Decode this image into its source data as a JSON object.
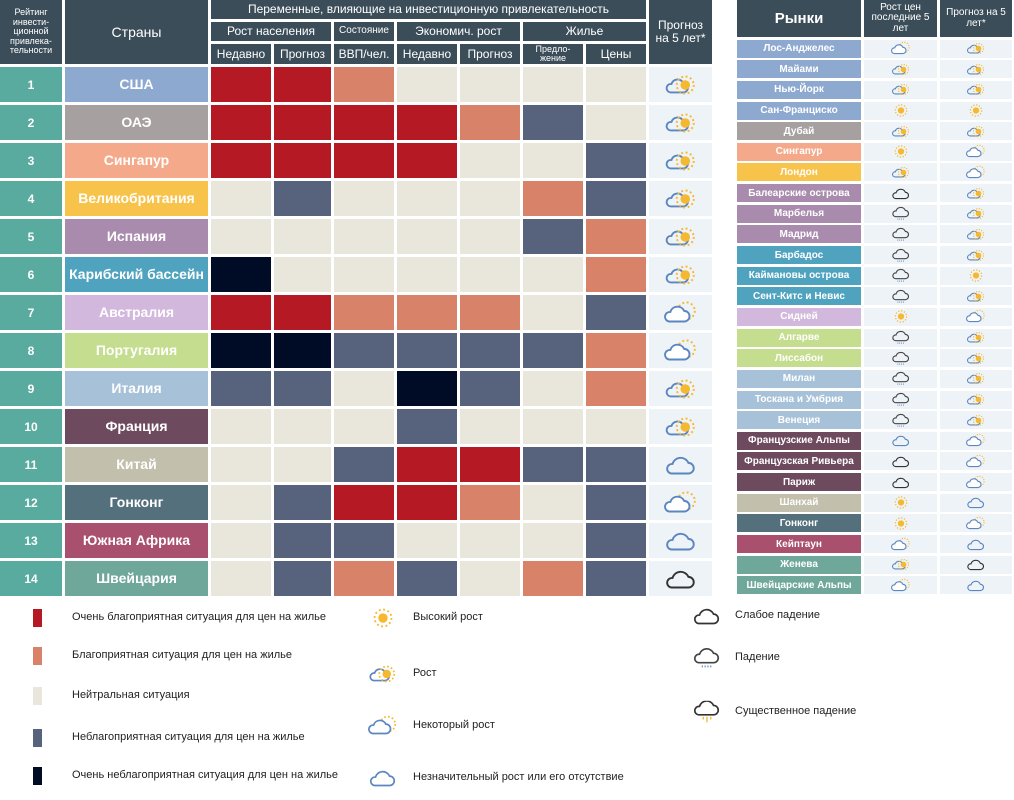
{
  "chart_data": {
    "type": "table",
    "title": "Переменные, влияющие на инвестиционную привлекательность",
    "headers": {
      "rank": "Рейтинг инвести-ционной привлека-тельности",
      "country": "Страны",
      "variables": "Переменные, влияющие на инвестиционную привлекательность",
      "groups": [
        "Рост населения",
        "Состояние",
        "Экономич. рост",
        "Жилье"
      ],
      "columns": [
        "Недавно",
        "Прогноз",
        "ВВП/чел.",
        "Недавно",
        "Прогноз",
        "Предло-жение",
        "Цены"
      ],
      "forecast": "Прогноз на 5 лет*"
    },
    "scale": {
      "2": "#b51a24",
      "1": "#d9826a",
      "0": "#e9e6dc",
      "-1": "#57627d",
      "-2": "#000c25"
    },
    "rows": [
      {
        "rank": "1",
        "country": "США",
        "color": "#8ea9d0",
        "values": [
          2,
          2,
          1,
          0,
          0,
          0,
          0
        ],
        "forecast": "growth"
      },
      {
        "rank": "2",
        "country": "ОАЭ",
        "color": "#a6a0a0",
        "values": [
          2,
          2,
          2,
          2,
          1,
          -1,
          0
        ],
        "forecast": "growth"
      },
      {
        "rank": "3",
        "country": "Сингапур",
        "color": "#f4a98a",
        "values": [
          2,
          2,
          2,
          2,
          0,
          0,
          -1
        ],
        "forecast": "growth"
      },
      {
        "rank": "4",
        "country": "Великобритания",
        "color": "#f8c34a",
        "values": [
          0,
          -1,
          0,
          0,
          0,
          1,
          -1
        ],
        "forecast": "growth"
      },
      {
        "rank": "5",
        "country": "Испания",
        "color": "#a88bad",
        "values": [
          0,
          0,
          0,
          0,
          0,
          -1,
          1
        ],
        "forecast": "growth"
      },
      {
        "rank": "6",
        "country": "Карибский бассейн",
        "color": "#4fa3bf",
        "values": [
          -2,
          0,
          0,
          0,
          0,
          0,
          1
        ],
        "forecast": "growth"
      },
      {
        "rank": "7",
        "country": "Австралия",
        "color": "#d2b8dc",
        "values": [
          2,
          2,
          1,
          1,
          1,
          0,
          -1
        ],
        "forecast": "some"
      },
      {
        "rank": "8",
        "country": "Португалия",
        "color": "#c5dd8e",
        "values": [
          -2,
          -2,
          -1,
          -1,
          -1,
          -1,
          1
        ],
        "forecast": "some"
      },
      {
        "rank": "9",
        "country": "Италия",
        "color": "#a7c1d9",
        "values": [
          -1,
          -1,
          0,
          -2,
          -1,
          0,
          1
        ],
        "forecast": "growth"
      },
      {
        "rank": "10",
        "country": "Франция",
        "color": "#6e4a5e",
        "values": [
          0,
          0,
          0,
          -1,
          0,
          0,
          0
        ],
        "forecast": "growth"
      },
      {
        "rank": "11",
        "country": "Китай",
        "color": "#c2bfac",
        "values": [
          0,
          0,
          -1,
          2,
          2,
          -1,
          -1
        ],
        "forecast": "none"
      },
      {
        "rank": "12",
        "country": "Гонконг",
        "color": "#53707c",
        "values": [
          0,
          -1,
          2,
          2,
          1,
          0,
          -1
        ],
        "forecast": "some"
      },
      {
        "rank": "13",
        "country": "Южная Африка",
        "color": "#a8506e",
        "values": [
          0,
          -1,
          -1,
          0,
          0,
          0,
          -1
        ],
        "forecast": "none"
      },
      {
        "rank": "14",
        "country": "Швейцария",
        "color": "#6fa79b",
        "values": [
          0,
          -1,
          1,
          -1,
          0,
          1,
          -1
        ],
        "forecast": "slight-fall"
      }
    ]
  },
  "markets": {
    "headers": [
      "Рынки",
      "Рост цен последние 5 лет",
      "Прогноз на 5 лет*"
    ],
    "rows": [
      {
        "name": "Лос-Анджелес",
        "color": "#8ea9d0",
        "past": "some",
        "forecast": "growth"
      },
      {
        "name": "Майами",
        "color": "#8ea9d0",
        "past": "growth",
        "forecast": "growth"
      },
      {
        "name": "Нью-Йорк",
        "color": "#8ea9d0",
        "past": "growth",
        "forecast": "growth"
      },
      {
        "name": "Сан-Франциско",
        "color": "#8ea9d0",
        "past": "high",
        "forecast": "high"
      },
      {
        "name": "Дубай",
        "color": "#a6a0a0",
        "past": "growth",
        "forecast": "growth"
      },
      {
        "name": "Сингапур",
        "color": "#f4a98a",
        "past": "high",
        "forecast": "some"
      },
      {
        "name": "Лондон",
        "color": "#f8c34a",
        "past": "growth",
        "forecast": "some"
      },
      {
        "name": "Балеарские острова",
        "color": "#a88bad",
        "past": "slight-fall",
        "forecast": "growth"
      },
      {
        "name": "Марбелья",
        "color": "#a88bad",
        "past": "fall",
        "forecast": "growth"
      },
      {
        "name": "Мадрид",
        "color": "#a88bad",
        "past": "fall",
        "forecast": "growth"
      },
      {
        "name": "Барбадос",
        "color": "#4fa3bf",
        "past": "fall",
        "forecast": "growth"
      },
      {
        "name": "Каймановы острова",
        "color": "#4fa3bf",
        "past": "fall",
        "forecast": "high"
      },
      {
        "name": "Сент-Китс и Невис",
        "color": "#4fa3bf",
        "past": "fall",
        "forecast": "growth"
      },
      {
        "name": "Сидней",
        "color": "#d2b8dc",
        "past": "high",
        "forecast": "some"
      },
      {
        "name": "Алгарве",
        "color": "#c5dd8e",
        "past": "fall",
        "forecast": "growth"
      },
      {
        "name": "Лиссабон",
        "color": "#c5dd8e",
        "past": "fall",
        "forecast": "growth"
      },
      {
        "name": "Милан",
        "color": "#a7c1d9",
        "past": "fall",
        "forecast": "growth"
      },
      {
        "name": "Тоскана и Умбрия",
        "color": "#a7c1d9",
        "past": "fall",
        "forecast": "growth"
      },
      {
        "name": "Венеция",
        "color": "#a7c1d9",
        "past": "fall",
        "forecast": "growth"
      },
      {
        "name": "Французские Альпы",
        "color": "#6e4a5e",
        "past": "none",
        "forecast": "some"
      },
      {
        "name": "Французская Ривьера",
        "color": "#6e4a5e",
        "past": "slight-fall",
        "forecast": "some"
      },
      {
        "name": "Париж",
        "color": "#6e4a5e",
        "past": "slight-fall",
        "forecast": "some"
      },
      {
        "name": "Шанхай",
        "color": "#c2bfac",
        "past": "high",
        "forecast": "none"
      },
      {
        "name": "Гонконг",
        "color": "#53707c",
        "past": "high",
        "forecast": "some"
      },
      {
        "name": "Кейптаун",
        "color": "#a8506e",
        "past": "some",
        "forecast": "none"
      },
      {
        "name": "Женева",
        "color": "#6fa79b",
        "past": "growth",
        "forecast": "slight-fall"
      },
      {
        "name": "Швейцарские Альпы",
        "color": "#6fa79b",
        "past": "some",
        "forecast": "none"
      }
    ]
  },
  "legend": {
    "colors": [
      {
        "label": "Очень благоприятная ситуация для цен на жилье",
        "color": "#b51a24"
      },
      {
        "label": "Благоприятная ситуация для цен на жилье",
        "color": "#d9826a"
      },
      {
        "label": "Нейтральная ситуация",
        "color": "#e9e6dc"
      },
      {
        "label": "Неблагоприятная ситуация для цен на жилье",
        "color": "#57627d"
      },
      {
        "label": "Очень неблагоприятная ситуация для цен на жилье",
        "color": "#000c25"
      }
    ],
    "icons": [
      {
        "icon": "high",
        "label": "Высокий рост"
      },
      {
        "icon": "growth",
        "label": "Рост"
      },
      {
        "icon": "some",
        "label": "Некоторый рост"
      },
      {
        "icon": "none",
        "label": "Незначительный рост или его отсутствие"
      },
      {
        "icon": "slight-fall",
        "label": "Слабое падение"
      },
      {
        "icon": "fall",
        "label": "Падение"
      },
      {
        "icon": "sig-fall",
        "label": "Существенное падение"
      }
    ]
  }
}
